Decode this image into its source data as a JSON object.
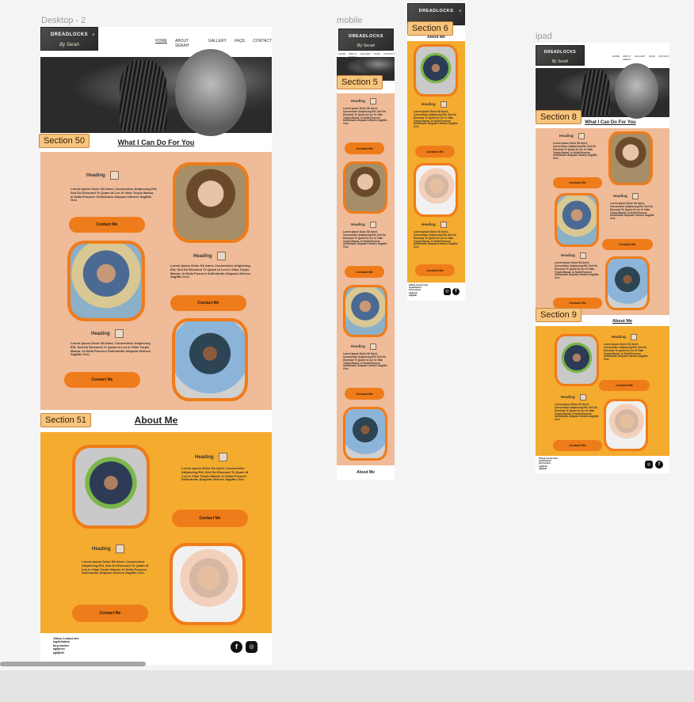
{
  "frames": {
    "desktop_label": "Desktop - 2",
    "mobile_label": "mobile",
    "ipad_label": "ipad"
  },
  "sections": {
    "s50": "Section 50",
    "s51": "Section 51",
    "s5": "Section 5",
    "s6": "Section 6",
    "s8": "Section 8",
    "s9": "Section 9"
  },
  "brand": {
    "title": "DREADLOCKS",
    "subtitle": "By Serah",
    "plus": "+"
  },
  "nav": {
    "items": [
      "HOME",
      "ABOUT SERAH",
      "GALLERY",
      "FAQS",
      "CONTACT"
    ]
  },
  "content": {
    "what_title": "What I Can Do For You",
    "about_title": "About Me",
    "heading": "Heading",
    "lorem": "Lorem Ipsum Dolor Sit Amet, Consectetur Adipiscing Elit, Sed Do Eiusmod Te Quam Id Leo In Vitae Turpis Massa. In Nulla Posuere Sollicitudin Aliquam Ultrices Sagittis Orci.",
    "lorem_short": "Lorem Ipsum Dolor Sit Amet, Consectetur Adipiscing Elit, Sed Do Eiusmod Te Quam Id Leo In Vitae Turpis Massa. In Nulla Posuere Sollicitudin Aliquam Ultrices Sagittis Orci.",
    "contact_btn": "Contact Me"
  },
  "footer": {
    "info": "Offwrk Contact Info\nfsgdhfhdheh\nfacy1stnlme\nagdjfnnh\nagkfjfdlf"
  },
  "colors": {
    "peach": "#efbb98",
    "orange": "#f4ab2e",
    "accent": "#ef7c1a"
  }
}
